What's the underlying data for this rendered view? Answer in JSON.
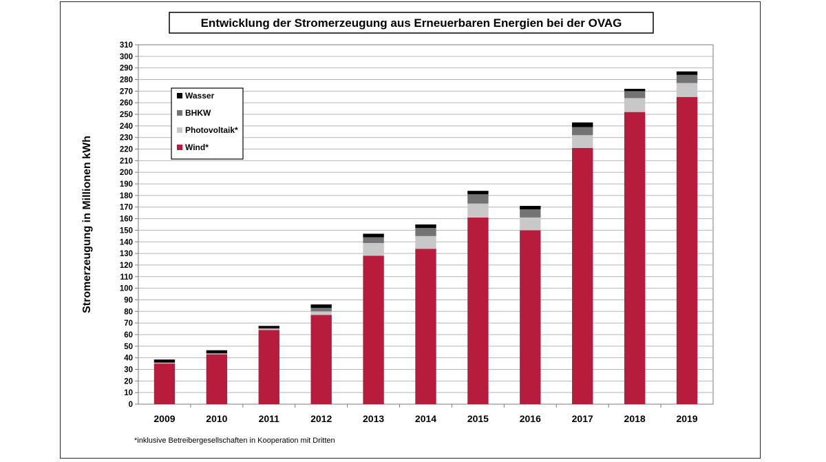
{
  "chart_data": {
    "type": "bar",
    "stacked": true,
    "title": "Entwicklung der Stromerzeugung aus Erneuerbaren Energien bei der OVAG",
    "xlabel": "",
    "ylabel": "Stromerzeugung in Millionen kWh",
    "ylim": [
      0,
      310
    ],
    "ytick_step": 10,
    "grid": true,
    "legend_position": "top-left",
    "categories": [
      "2009",
      "2010",
      "2011",
      "2012",
      "2013",
      "2014",
      "2015",
      "2016",
      "2017",
      "2018",
      "2019"
    ],
    "series": [
      {
        "name": "Wind*",
        "color": "#b71c3c",
        "values": [
          35,
          43,
          64,
          77,
          128,
          134,
          161,
          150,
          221,
          252,
          265
        ]
      },
      {
        "name": "Photovoltaik*",
        "color": "#c8c8c8",
        "values": [
          0.5,
          0.5,
          1,
          3,
          11,
          11,
          12,
          11,
          11,
          12,
          12
        ]
      },
      {
        "name": "BHKW",
        "color": "#737373",
        "values": [
          0.5,
          0.5,
          0.5,
          3,
          5,
          7,
          8,
          7,
          7,
          6,
          7
        ]
      },
      {
        "name": "Wasser",
        "color": "#000000",
        "values": [
          2.5,
          2.5,
          2,
          3,
          3,
          3,
          3,
          3,
          4,
          2,
          3
        ]
      }
    ],
    "legend_order": [
      "Wasser",
      "BHKW",
      "Photovoltaik*",
      "Wind*"
    ],
    "footnote": "*inklusive Betreibergesellschaften in Kooperation mit Dritten"
  }
}
